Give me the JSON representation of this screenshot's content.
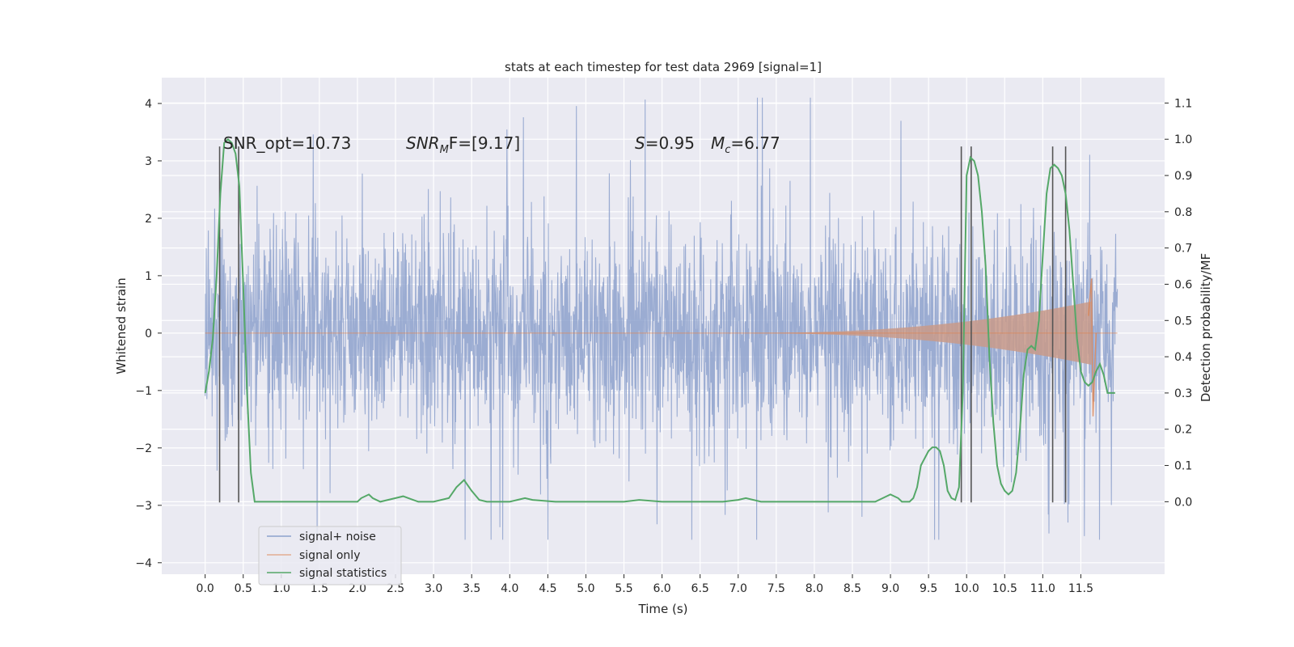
{
  "chart_data": {
    "type": "line",
    "title": "stats at each timestep for test data 2969 [signal=1]",
    "xlabel": "Time (s)",
    "ylabel": "Whitened strain",
    "ylabel_right": "Detection probability/MF",
    "xlim": [
      -0.57,
      12.6
    ],
    "ylim": [
      -4.2,
      4.45
    ],
    "ylim_right": [
      -0.2,
      1.17
    ],
    "x_ticks": [
      "0.0",
      "0.5",
      "1.0",
      "1.5",
      "2.0",
      "2.5",
      "3.0",
      "3.5",
      "4.0",
      "4.5",
      "5.0",
      "5.5",
      "6.0",
      "6.5",
      "7.0",
      "7.5",
      "8.0",
      "8.5",
      "9.0",
      "9.5",
      "10.0",
      "10.5",
      "11.0",
      "11.5"
    ],
    "y_ticks": [
      "4",
      "3",
      "2",
      "1",
      "0",
      "−1",
      "−2",
      "−3",
      "−4"
    ],
    "y_ticks_right": [
      "1.1",
      "1.0",
      "0.9",
      "0.8",
      "0.7",
      "0.6",
      "0.5",
      "0.4",
      "0.3",
      "0.2",
      "0.1",
      "0.0"
    ],
    "annotations": {
      "snr_opt": "SNR_opt=10.73",
      "snr_mf_main": "SNR",
      "snr_mf_sub": "M",
      "snr_mf_rest": "F=[9.17]",
      "s_main": "S",
      "s_rest": "=0.95",
      "mc_main": "M",
      "mc_sub": "c",
      "mc_rest": "=6.77"
    },
    "legend": {
      "placement": "lower-left",
      "entries": [
        "signal+ noise",
        "signal only",
        "signal statistics"
      ]
    },
    "colors": {
      "noise": "#8da1cc",
      "signal": "#dd8452",
      "signal_fill": "#c99a8a",
      "stats": "#55a868",
      "vlines": "#555555",
      "background": "#eaeaf2",
      "grid": "#ffffff"
    },
    "vertical_lines": [
      0.19,
      0.44,
      9.93,
      10.06,
      11.13,
      11.3
    ],
    "vertical_line_range": [
      -2.95,
      3.25
    ],
    "series": [
      {
        "name": "signal statistics",
        "x": [
          0.0,
          0.05,
          0.1,
          0.15,
          0.2,
          0.25,
          0.3,
          0.35,
          0.4,
          0.45,
          0.5,
          0.55,
          0.6,
          0.65,
          0.7,
          0.8,
          1.0,
          1.5,
          2.0,
          2.05,
          2.15,
          2.2,
          2.3,
          2.5,
          2.6,
          2.8,
          3.0,
          3.2,
          3.3,
          3.4,
          3.5,
          3.6,
          3.7,
          4.0,
          4.1,
          4.2,
          4.3,
          4.6,
          5.0,
          5.5,
          5.7,
          6.0,
          6.5,
          6.8,
          7.0,
          7.1,
          7.3,
          7.5,
          8.0,
          8.5,
          8.8,
          8.9,
          9.0,
          9.1,
          9.15,
          9.25,
          9.3,
          9.35,
          9.4,
          9.5,
          9.55,
          9.6,
          9.65,
          9.7,
          9.75,
          9.8,
          9.85,
          9.9,
          9.95,
          10.0,
          10.05,
          10.1,
          10.15,
          10.2,
          10.25,
          10.3,
          10.35,
          10.4,
          10.45,
          10.5,
          10.55,
          10.6,
          10.65,
          10.7,
          10.75,
          10.8,
          10.85,
          10.9,
          10.95,
          11.0,
          11.05,
          11.1,
          11.15,
          11.2,
          11.25,
          11.3,
          11.35,
          11.4,
          11.45,
          11.5,
          11.55,
          11.6,
          11.65,
          11.7,
          11.75,
          11.8,
          11.85,
          11.9,
          11.95
        ],
        "values": [
          0.3,
          0.36,
          0.45,
          0.62,
          0.85,
          0.99,
          1.0,
          0.99,
          0.96,
          0.87,
          0.6,
          0.3,
          0.08,
          0.0,
          0.0,
          0.0,
          0.0,
          0.0,
          0.0,
          0.01,
          0.02,
          0.01,
          0.0,
          0.01,
          0.015,
          0.0,
          0.0,
          0.01,
          0.04,
          0.06,
          0.03,
          0.005,
          0.0,
          0.0,
          0.005,
          0.01,
          0.005,
          0.0,
          0.0,
          0.0,
          0.005,
          0.0,
          0.0,
          0.0,
          0.005,
          0.01,
          0.0,
          0.0,
          0.0,
          0.0,
          0.0,
          0.01,
          0.02,
          0.01,
          0.0,
          0.0,
          0.01,
          0.04,
          0.1,
          0.14,
          0.15,
          0.15,
          0.14,
          0.1,
          0.03,
          0.01,
          0.005,
          0.04,
          0.3,
          0.9,
          0.95,
          0.94,
          0.9,
          0.8,
          0.65,
          0.4,
          0.22,
          0.1,
          0.05,
          0.03,
          0.02,
          0.03,
          0.08,
          0.2,
          0.35,
          0.42,
          0.43,
          0.42,
          0.5,
          0.68,
          0.85,
          0.92,
          0.93,
          0.92,
          0.9,
          0.85,
          0.75,
          0.6,
          0.45,
          0.36,
          0.33,
          0.32,
          0.33,
          0.36,
          0.38,
          0.35,
          0.3,
          0.3,
          0.3
        ]
      }
    ]
  }
}
